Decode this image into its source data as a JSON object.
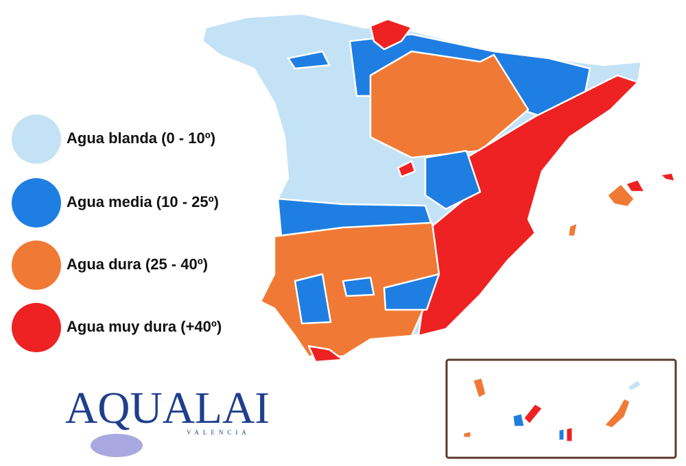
{
  "legend": [
    {
      "label": "Agua blanda (0 - 10º)",
      "color": "#c4e2f6"
    },
    {
      "label": "Agua media (10 - 25º)",
      "color": "#1f7ee2"
    },
    {
      "label": "Agua dura (25 - 40º)",
      "color": "#f07a35"
    },
    {
      "label": "Agua muy dura (+40º)",
      "color": "#ee2222"
    }
  ],
  "logo": {
    "name": "AQUALAI",
    "city": "VALENCIA"
  }
}
